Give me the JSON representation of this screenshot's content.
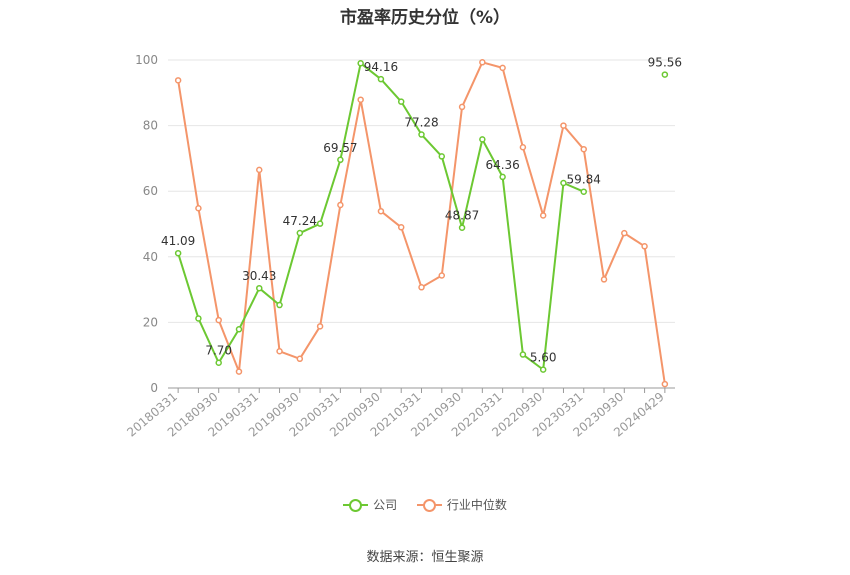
{
  "chart_data": {
    "type": "line",
    "title": "市盈率历史分位（%）",
    "ylim": [
      0,
      100
    ],
    "y_ticks": [
      0,
      20,
      40,
      60,
      80,
      100
    ],
    "grid": true,
    "legend_position": "bottom",
    "source": "数据来源：恒生聚源",
    "x_labels": [
      "20180331",
      "20180930",
      "20190331",
      "20190930",
      "20200331",
      "20200930",
      "20210331",
      "20210930",
      "20220331",
      "20220930",
      "20230331",
      "20230930",
      "20240429"
    ],
    "x": [
      "20180331",
      "20180630",
      "20180930",
      "20181231",
      "20190331",
      "20190630",
      "20190930",
      "20191231",
      "20200331",
      "20200630",
      "20200930",
      "20201231",
      "20210331",
      "20210630",
      "20210930",
      "20211231",
      "20220331",
      "20220630",
      "20220930",
      "20221231",
      "20230331",
      "20230630",
      "20230930",
      "20231231",
      "20240429"
    ],
    "series": [
      {
        "name": "公司",
        "color": "#6cc832",
        "values": [
          41.09,
          21.2,
          7.7,
          17.9,
          30.43,
          25.3,
          47.24,
          50.1,
          69.57,
          99.0,
          94.16,
          87.3,
          77.28,
          70.6,
          48.87,
          75.8,
          64.36,
          10.2,
          5.6,
          62.5,
          59.84,
          null,
          null,
          null,
          95.56
        ],
        "labels": {
          "0": "41.09",
          "2": "7.70",
          "4": "30.43",
          "6": "47.24",
          "8": "69.57",
          "10": "94.16",
          "12": "77.28",
          "14": "48.87",
          "16": "64.36",
          "18": "5.60",
          "20": "59.84",
          "24": "95.56"
        }
      },
      {
        "name": "行业中位数",
        "color": "#f4956a",
        "values": [
          93.8,
          54.8,
          20.7,
          5.0,
          66.5,
          11.2,
          8.9,
          18.8,
          55.8,
          87.9,
          53.9,
          49.0,
          30.7,
          34.3,
          85.7,
          99.3,
          97.6,
          73.4,
          52.6,
          80.0,
          72.8,
          33.1,
          47.2,
          43.2,
          1.2
        ]
      }
    ]
  }
}
